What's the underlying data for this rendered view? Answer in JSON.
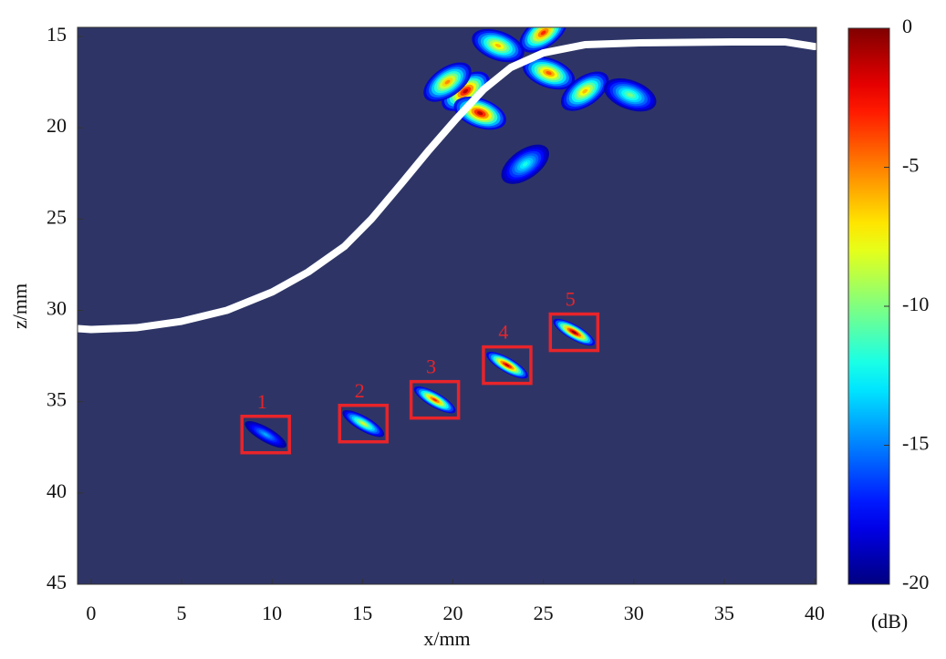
{
  "chart_data": {
    "type": "image",
    "xlabel": "x/mm",
    "ylabel": "z/mm",
    "xlim": [
      -0.75,
      40.1
    ],
    "ylim": [
      45,
      14.5
    ],
    "xticks": [
      0,
      5,
      10,
      15,
      20,
      25,
      30,
      35,
      40
    ],
    "yticks": [
      15,
      20,
      25,
      30,
      35,
      40,
      45
    ],
    "background_color": "#2e3566",
    "colorbar": {
      "label": "(dB)",
      "lim": [
        -20,
        0
      ],
      "ticks": [
        0,
        -5,
        -10,
        -15,
        -20
      ],
      "colormap": "jet"
    },
    "interface": {
      "color": "#ffffff",
      "x": [
        -0.75,
        0,
        2.5,
        5,
        7.5,
        10,
        12,
        14,
        15.5,
        17.2,
        18.7,
        20.2,
        21.7,
        23.2,
        25,
        27.3,
        30.3,
        35.4,
        38.4,
        40
      ],
      "z": [
        31.0,
        31.05,
        30.95,
        30.6,
        30.0,
        29.0,
        27.9,
        26.5,
        25.0,
        23.0,
        21.2,
        19.5,
        17.9,
        16.7,
        15.9,
        15.45,
        15.35,
        15.3,
        15.3,
        15.55
      ]
    },
    "targets": {
      "box_color": "#e8242a",
      "labels": [
        "1",
        "2",
        "3",
        "4",
        "5"
      ],
      "x": [
        9.65,
        15.05,
        19.0,
        23.0,
        26.7
      ],
      "z": [
        36.8,
        36.2,
        34.9,
        33.0,
        31.2
      ],
      "peak": [
        -14,
        -8,
        -3,
        -1,
        0
      ]
    },
    "artifacts": {
      "x": [
        20.7,
        21.5,
        19.7,
        25.3,
        27.3,
        29.8,
        24.0,
        22.5,
        25.0
      ],
      "z": [
        18.0,
        19.2,
        17.5,
        17.0,
        18.0,
        18.2,
        22.0,
        15.5,
        14.8
      ],
      "peak": [
        -1,
        -1,
        -5,
        -4,
        -6,
        -10,
        -12,
        -6,
        -3
      ]
    }
  }
}
